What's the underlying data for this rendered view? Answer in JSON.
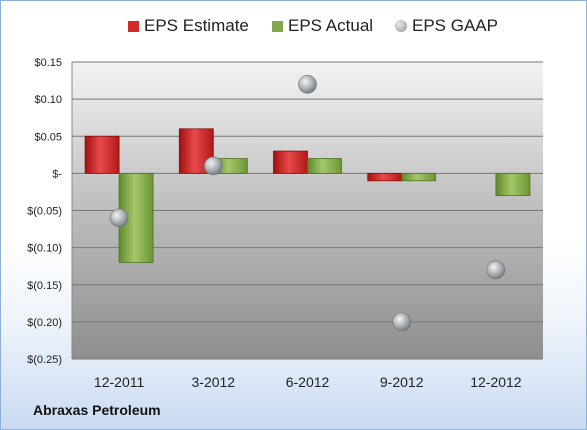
{
  "chart_data": {
    "type": "bar",
    "company": "Abraxas Petroleum",
    "categories": [
      "12-2011",
      "3-2012",
      "6-2012",
      "9-2012",
      "12-2012"
    ],
    "series": [
      {
        "name": "EPS Estimate",
        "kind": "bar",
        "color": "#d62828",
        "values": [
          0.05,
          0.06,
          0.03,
          -0.01,
          null
        ]
      },
      {
        "name": "EPS Actual",
        "kind": "bar",
        "color": "#84a94c",
        "values": [
          -0.12,
          0.02,
          0.02,
          -0.01,
          -0.03
        ]
      },
      {
        "name": "EPS GAAP",
        "kind": "marker",
        "color": "#9aa0a6",
        "values": [
          -0.06,
          0.01,
          0.12,
          -0.2,
          -0.13
        ]
      }
    ],
    "yticks": [
      {
        "v": 0.15,
        "label": "$0.15"
      },
      {
        "v": 0.1,
        "label": "$0.10"
      },
      {
        "v": 0.05,
        "label": "$0.05"
      },
      {
        "v": 0,
        "label": "$-"
      },
      {
        "v": -0.05,
        "label": "$(0.05)"
      },
      {
        "v": -0.1,
        "label": "$(0.10)"
      },
      {
        "v": -0.15,
        "label": "$(0.15)"
      },
      {
        "v": -0.2,
        "label": "$(0.20)"
      },
      {
        "v": -0.25,
        "label": "$(0.25)"
      }
    ],
    "ylim": [
      -0.25,
      0.15
    ],
    "grid": true,
    "legend_position": "top"
  }
}
